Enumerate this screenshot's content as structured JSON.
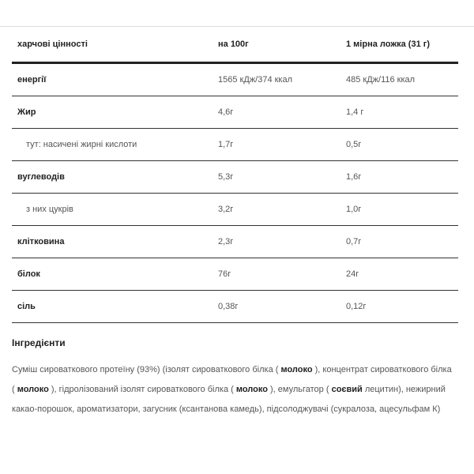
{
  "table": {
    "headers": [
      "харчові цінності",
      "на 100г",
      "1 мірна ложка (31 г)"
    ],
    "rows": [
      {
        "label": "енергії",
        "per100": "1565 кДж/374 ккал",
        "serving": "485 кДж/116 ккал",
        "sub": false
      },
      {
        "label": "Жир",
        "per100": "4,6г",
        "serving": "1,4 г",
        "sub": false
      },
      {
        "label": "тут: насичені жирні кислоти",
        "per100": "1,7г",
        "serving": "0,5г",
        "sub": true
      },
      {
        "label": "вуглеводів",
        "per100": "5,3г",
        "serving": "1,6г",
        "sub": false
      },
      {
        "label": "з них цукрів",
        "per100": "3,2г",
        "serving": "1,0г",
        "sub": true
      },
      {
        "label": "клітковина",
        "per100": "2,3г",
        "serving": "0,7г",
        "sub": false
      },
      {
        "label": "білок",
        "per100": "76г",
        "serving": "24г",
        "sub": false
      },
      {
        "label": "сіль",
        "per100": "0,38г",
        "serving": "0,12г",
        "sub": false
      }
    ]
  },
  "ingredients": {
    "title": "Інгредієнти",
    "parts": [
      {
        "t": "Суміш сироваткового протеїну (93%) (ізолят сироваткового білка ( ",
        "b": false
      },
      {
        "t": "молоко",
        "b": true
      },
      {
        "t": " ), концентрат сироваткового білка ( ",
        "b": false
      },
      {
        "t": "молоко",
        "b": true
      },
      {
        "t": " ), гідролізований ізолят сироваткового білка ( ",
        "b": false
      },
      {
        "t": "молоко",
        "b": true
      },
      {
        "t": " ), емульгатор ( ",
        "b": false
      },
      {
        "t": "соєвий",
        "b": true
      },
      {
        "t": " лецитин), нежирний какао-порошок, ароматизатори, загусник (ксантанова камедь), підсолоджувачі (сукралоза, ацесульфам К)",
        "b": false
      }
    ]
  }
}
